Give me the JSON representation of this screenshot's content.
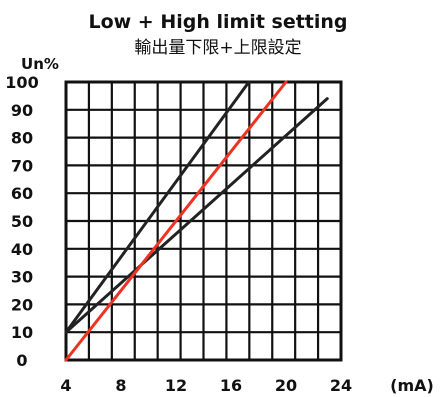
{
  "chart_data": {
    "type": "line",
    "title": "Low + High limit setting",
    "subtitle": "輸出量下限+上限設定",
    "ylabel": "Un%",
    "x_unit": "(mA)",
    "xlim": [
      4,
      24
    ],
    "ylim": [
      0,
      100
    ],
    "x_ticks": [
      "4",
      "8",
      "12",
      "16",
      "20",
      "24"
    ],
    "y_ticks": [
      "0",
      "10",
      "20",
      "30",
      "40",
      "50",
      "60",
      "70",
      "80",
      "90",
      "100"
    ],
    "grid": true,
    "series": [
      {
        "color": "#ee3322",
        "points": [
          [
            4,
            0
          ],
          [
            20,
            100
          ]
        ]
      },
      {
        "color": "#222222",
        "points": [
          [
            4,
            10
          ],
          [
            17.3,
            100
          ]
        ]
      },
      {
        "color": "#222222",
        "points": [
          [
            4,
            10
          ],
          [
            23,
            94
          ]
        ]
      }
    ]
  }
}
